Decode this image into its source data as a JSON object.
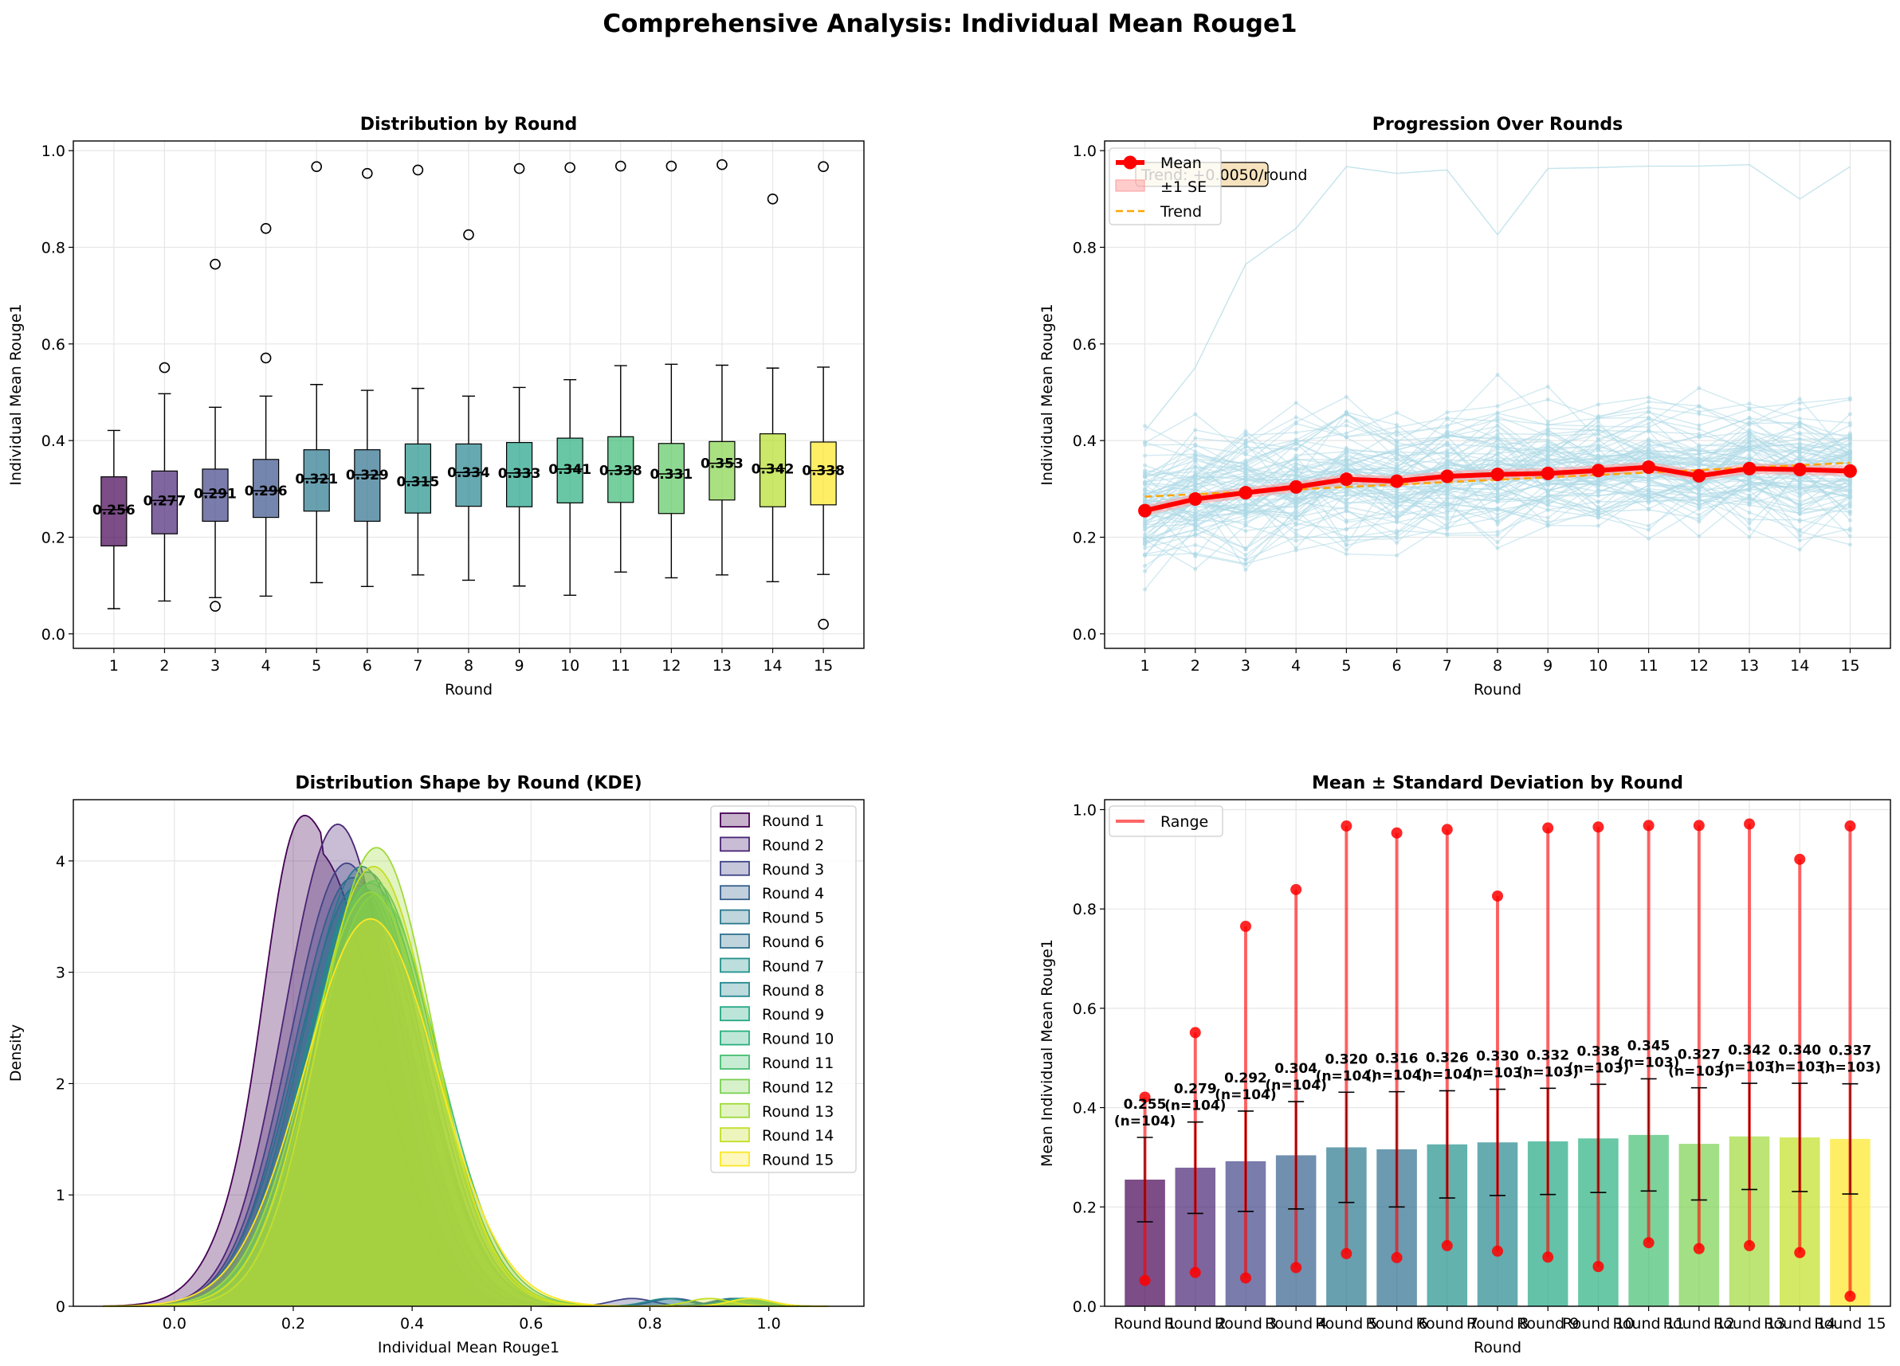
{
  "suptitle": "Comprehensive Analysis: Individual Mean Rouge1",
  "chart_data": [
    {
      "type": "box",
      "title": "Distribution by Round",
      "xlabel": "Round",
      "ylabel": "Individual Mean Rouge1",
      "ylim": [
        -0.03,
        1.02
      ],
      "yticks": [
        "0.0",
        "0.2",
        "0.4",
        "0.6",
        "0.8",
        "1.0"
      ],
      "grid": true,
      "categories": [
        "1",
        "2",
        "3",
        "4",
        "5",
        "6",
        "7",
        "8",
        "9",
        "10",
        "11",
        "12",
        "13",
        "14",
        "15"
      ],
      "colors": [
        "#440154",
        "#482575",
        "#414487",
        "#3b528b",
        "#2a788e",
        "#2d708e",
        "#21918c",
        "#25858e",
        "#1fa187",
        "#29af7f",
        "#3bbb75",
        "#5ec962",
        "#84d44b",
        "#b5de2b",
        "#fde725"
      ],
      "boxes": [
        {
          "whislo": 0.052,
          "q1": 0.182,
          "med": 0.257,
          "q3": 0.325,
          "whishi": 0.421,
          "fliers": []
        },
        {
          "whislo": 0.068,
          "q1": 0.207,
          "med": 0.276,
          "q3": 0.337,
          "whishi": 0.497,
          "fliers": [
            0.551
          ]
        },
        {
          "whislo": 0.075,
          "q1": 0.233,
          "med": 0.291,
          "q3": 0.341,
          "whishi": 0.469,
          "fliers": [
            0.765,
            0.057
          ]
        },
        {
          "whislo": 0.078,
          "q1": 0.241,
          "med": 0.296,
          "q3": 0.361,
          "whishi": 0.492,
          "fliers": [
            0.839,
            0.571
          ]
        },
        {
          "whislo": 0.106,
          "q1": 0.254,
          "med": 0.321,
          "q3": 0.381,
          "whishi": 0.516,
          "fliers": [
            0.967
          ]
        },
        {
          "whislo": 0.098,
          "q1": 0.233,
          "med": 0.329,
          "q3": 0.381,
          "whishi": 0.504,
          "fliers": [
            0.953
          ]
        },
        {
          "whislo": 0.122,
          "q1": 0.25,
          "med": 0.315,
          "q3": 0.393,
          "whishi": 0.508,
          "fliers": [
            0.96
          ]
        },
        {
          "whislo": 0.111,
          "q1": 0.264,
          "med": 0.334,
          "q3": 0.393,
          "whishi": 0.492,
          "fliers": [
            0.826
          ]
        },
        {
          "whislo": 0.099,
          "q1": 0.263,
          "med": 0.333,
          "q3": 0.396,
          "whishi": 0.51,
          "fliers": [
            0.963
          ]
        },
        {
          "whislo": 0.08,
          "q1": 0.271,
          "med": 0.341,
          "q3": 0.405,
          "whishi": 0.526,
          "fliers": [
            0.965
          ]
        },
        {
          "whislo": 0.128,
          "q1": 0.272,
          "med": 0.338,
          "q3": 0.408,
          "whishi": 0.555,
          "fliers": [
            0.968
          ]
        },
        {
          "whislo": 0.116,
          "q1": 0.249,
          "med": 0.331,
          "q3": 0.394,
          "whishi": 0.558,
          "fliers": [
            0.968
          ]
        },
        {
          "whislo": 0.122,
          "q1": 0.277,
          "med": 0.353,
          "q3": 0.398,
          "whishi": 0.556,
          "fliers": [
            0.971
          ]
        },
        {
          "whislo": 0.108,
          "q1": 0.263,
          "med": 0.342,
          "q3": 0.414,
          "whishi": 0.55,
          "fliers": [
            0.9
          ]
        },
        {
          "whislo": 0.123,
          "q1": 0.267,
          "med": 0.338,
          "q3": 0.397,
          "whishi": 0.552,
          "fliers": [
            0.967,
            0.02
          ]
        }
      ],
      "median_labels": [
        "0.256",
        "0.277",
        "0.291",
        "0.296",
        "0.321",
        "0.329",
        "0.315",
        "0.334",
        "0.333",
        "0.341",
        "0.338",
        "0.331",
        "0.353",
        "0.342",
        "0.338"
      ]
    },
    {
      "type": "line",
      "title": "Progression Over Rounds",
      "xlabel": "Round",
      "ylabel": "Individual Mean Rouge1",
      "ylim": [
        -0.03,
        1.02
      ],
      "yticks": [
        "0.0",
        "0.2",
        "0.4",
        "0.6",
        "0.8",
        "1.0"
      ],
      "x": [
        1,
        2,
        3,
        4,
        5,
        6,
        7,
        8,
        9,
        10,
        11,
        12,
        13,
        14,
        15
      ],
      "grid": true,
      "legend_position": "top-left",
      "series": [
        {
          "name": "Mean",
          "color": "#ff0000",
          "values": [
            0.255,
            0.279,
            0.292,
            0.304,
            0.32,
            0.316,
            0.326,
            0.33,
            0.332,
            0.338,
            0.345,
            0.327,
            0.342,
            0.34,
            0.337
          ]
        },
        {
          "name": "±1 SE",
          "color": "#ff9a9a"
        },
        {
          "name": "Trend",
          "color": "#ffa500",
          "values": [
            0.284,
            0.289,
            0.294,
            0.299,
            0.304,
            0.309,
            0.314,
            0.319,
            0.324,
            0.329,
            0.334,
            0.339,
            0.344,
            0.349,
            0.354
          ]
        }
      ],
      "individual_color": "#add8e6",
      "individual_outlier_path": [
        0.42,
        0.551,
        0.765,
        0.839,
        0.967,
        0.953,
        0.96,
        0.826,
        0.963,
        0.965,
        0.968,
        0.968,
        0.971,
        0.9,
        0.967
      ],
      "annotation": "Trend: +0.0050/round"
    },
    {
      "type": "area",
      "title": "Distribution Shape by Round (KDE)",
      "xlabel": "Individual Mean Rouge1",
      "ylabel": "Density",
      "xlim": [
        -0.17,
        1.16
      ],
      "ylim": [
        0,
        4.55
      ],
      "xticks": [
        "0.0",
        "0.2",
        "0.4",
        "0.6",
        "0.8",
        "1.0"
      ],
      "yticks": [
        "0",
        "1",
        "2",
        "3",
        "4"
      ],
      "grid": true,
      "legend_position": "top-right",
      "series": [
        {
          "name": "Round 1",
          "color": "#440154",
          "peak": 3.92
        },
        {
          "name": "Round 2",
          "color": "#482475",
          "peak": 4.33
        },
        {
          "name": "Round 3",
          "color": "#414487",
          "peak": 3.98
        },
        {
          "name": "Round 4",
          "color": "#355f8d",
          "peak": 3.85
        },
        {
          "name": "Round 5",
          "color": "#2a788e",
          "peak": 3.95
        },
        {
          "name": "Round 6",
          "color": "#2e6f8e",
          "peak": 3.78
        },
        {
          "name": "Round 7",
          "color": "#21918c",
          "peak": 3.75
        },
        {
          "name": "Round 8",
          "color": "#23888e",
          "peak": 3.9
        },
        {
          "name": "Round 9",
          "color": "#22a884",
          "peak": 3.8
        },
        {
          "name": "Round 10",
          "color": "#2ab07f",
          "peak": 3.82
        },
        {
          "name": "Round 11",
          "color": "#44bf70",
          "peak": 3.7
        },
        {
          "name": "Round 12",
          "color": "#7ad151",
          "peak": 3.72
        },
        {
          "name": "Round 13",
          "color": "#9fda3a",
          "peak": 4.12
        },
        {
          "name": "Round 14",
          "color": "#c2df23",
          "peak": 3.95
        },
        {
          "name": "Round 15",
          "color": "#fde725",
          "peak": 3.48
        }
      ]
    },
    {
      "type": "bar",
      "title": "Mean ± Standard Deviation by Round",
      "xlabel": "Round",
      "ylabel": "Mean Individual Mean Rouge1",
      "ylim": [
        0,
        1.02
      ],
      "yticks": [
        "0.0",
        "0.2",
        "0.4",
        "0.6",
        "0.8",
        "1.0"
      ],
      "grid": true,
      "legend_position": "top-left",
      "legend": "Range",
      "categories": [
        "Round 1",
        "Round 2",
        "Round 3",
        "Round 4",
        "Round 5",
        "Round 6",
        "Round 7",
        "Round 8",
        "Round 9",
        "Round 10",
        "Round 11",
        "Round 12",
        "Round 13",
        "Round 14",
        "Round 15"
      ],
      "values": [
        0.255,
        0.279,
        0.292,
        0.304,
        0.32,
        0.316,
        0.326,
        0.33,
        0.332,
        0.338,
        0.345,
        0.327,
        0.342,
        0.34,
        0.337
      ],
      "std": [
        0.085,
        0.092,
        0.101,
        0.108,
        0.111,
        0.116,
        0.108,
        0.107,
        0.107,
        0.109,
        0.113,
        0.113,
        0.107,
        0.109,
        0.111
      ],
      "min": [
        0.052,
        0.068,
        0.057,
        0.078,
        0.106,
        0.098,
        0.122,
        0.111,
        0.099,
        0.08,
        0.128,
        0.116,
        0.122,
        0.108,
        0.02
      ],
      "max": [
        0.421,
        0.551,
        0.765,
        0.839,
        0.967,
        0.953,
        0.96,
        0.826,
        0.963,
        0.965,
        0.968,
        0.968,
        0.971,
        0.9,
        0.967
      ],
      "value_labels": [
        "0.255",
        "0.279",
        "0.292",
        "0.304",
        "0.320",
        "0.316",
        "0.326",
        "0.330",
        "0.332",
        "0.338",
        "0.345",
        "0.327",
        "0.342",
        "0.340",
        "0.337"
      ],
      "n_labels": [
        "(n=104)",
        "(n=104)",
        "(n=104)",
        "(n=104)",
        "(n=104)",
        "(n=104)",
        "(n=104)",
        "(n=103)",
        "(n=103)",
        "(n=103)",
        "(n=103)",
        "(n=103)",
        "(n=103)",
        "(n=103)",
        "(n=103)"
      ],
      "colors": [
        "#440154",
        "#482475",
        "#414487",
        "#355f8d",
        "#2a788e",
        "#2e6f8e",
        "#21918c",
        "#23888e",
        "#22a884",
        "#2ab07f",
        "#44bf70",
        "#7ad151",
        "#9fda3a",
        "#c2df23",
        "#fde725"
      ]
    }
  ]
}
